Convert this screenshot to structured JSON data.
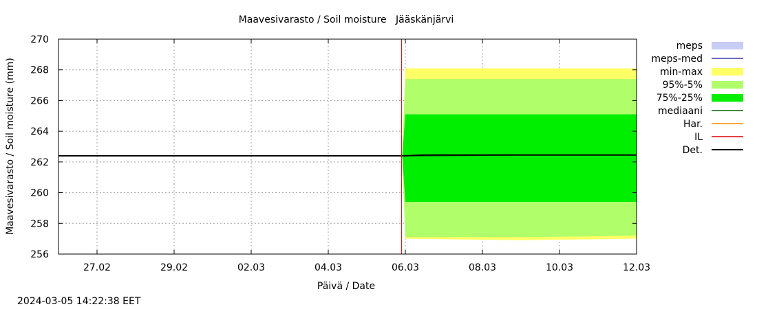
{
  "timestamp": "2024-03-05 14:22:38 EET",
  "chart_data": {
    "type": "area",
    "title": "Maavesivarasto / Soil moisture   Jääskänjärvi",
    "xlabel": "Päivä / Date",
    "ylabel": "Maavesivarasto / Soil moisture (mm)",
    "x_tick_labels": [
      "27.02",
      "29.02",
      "02.03",
      "04.03",
      "06.03",
      "08.03",
      "10.03",
      "12.03"
    ],
    "x_ticks": [
      1,
      3,
      5,
      7,
      9,
      11,
      13,
      15
    ],
    "xlim": [
      0,
      15
    ],
    "ylim": [
      256,
      270
    ],
    "y_ticks": [
      256,
      258,
      260,
      262,
      264,
      266,
      268,
      270
    ],
    "grid": true,
    "legend_position": "right",
    "forecast_start_x": 8.9,
    "legend": [
      {
        "label": "meps",
        "kind": "fill",
        "color": "#c8cdf5"
      },
      {
        "label": "meps-med",
        "kind": "line",
        "color": "#3a3aaa"
      },
      {
        "label": "min-max",
        "kind": "fill",
        "color": "#ffff66"
      },
      {
        "label": "95%-5%",
        "kind": "fill",
        "color": "#b0ff6a"
      },
      {
        "label": "75%-25%",
        "kind": "fill",
        "color": "#00ee00"
      },
      {
        "label": "mediaani",
        "kind": "line",
        "color": "#006600"
      },
      {
        "label": "Har.",
        "kind": "line",
        "color": "#ff8800"
      },
      {
        "label": "IL",
        "kind": "line",
        "color": "#dd0000"
      },
      {
        "label": "Det.",
        "kind": "line",
        "color": "#000000"
      }
    ],
    "bands": [
      {
        "name": "min-max",
        "color": "#ffff66",
        "x": [
          8.92,
          9.0,
          12.0,
          15.0
        ],
        "lower": [
          262.4,
          257.0,
          256.9,
          257.0
        ],
        "upper": [
          262.4,
          268.1,
          268.1,
          268.1
        ]
      },
      {
        "name": "95%-5%",
        "color": "#b0ff6a",
        "x": [
          8.92,
          9.0,
          12.0,
          15.0
        ],
        "lower": [
          262.4,
          257.1,
          257.1,
          257.2
        ],
        "upper": [
          262.4,
          267.4,
          267.4,
          267.4
        ]
      },
      {
        "name": "75%-25%",
        "color": "#00ee00",
        "x": [
          8.92,
          9.0,
          12.0,
          15.0
        ],
        "lower": [
          262.4,
          259.4,
          259.4,
          259.4
        ],
        "upper": [
          262.4,
          265.1,
          265.1,
          265.1
        ]
      }
    ],
    "series": [
      {
        "name": "mediaani",
        "color": "#006600",
        "x": [
          8.92,
          9.0,
          9.5,
          12.0,
          15.0
        ],
        "y": [
          262.4,
          262.4,
          262.4,
          262.45,
          262.45
        ]
      },
      {
        "name": "Det.",
        "color": "#000000",
        "x": [
          0,
          9.0,
          9.5,
          15.0
        ],
        "y": [
          262.4,
          262.4,
          262.45,
          262.45
        ]
      }
    ]
  }
}
